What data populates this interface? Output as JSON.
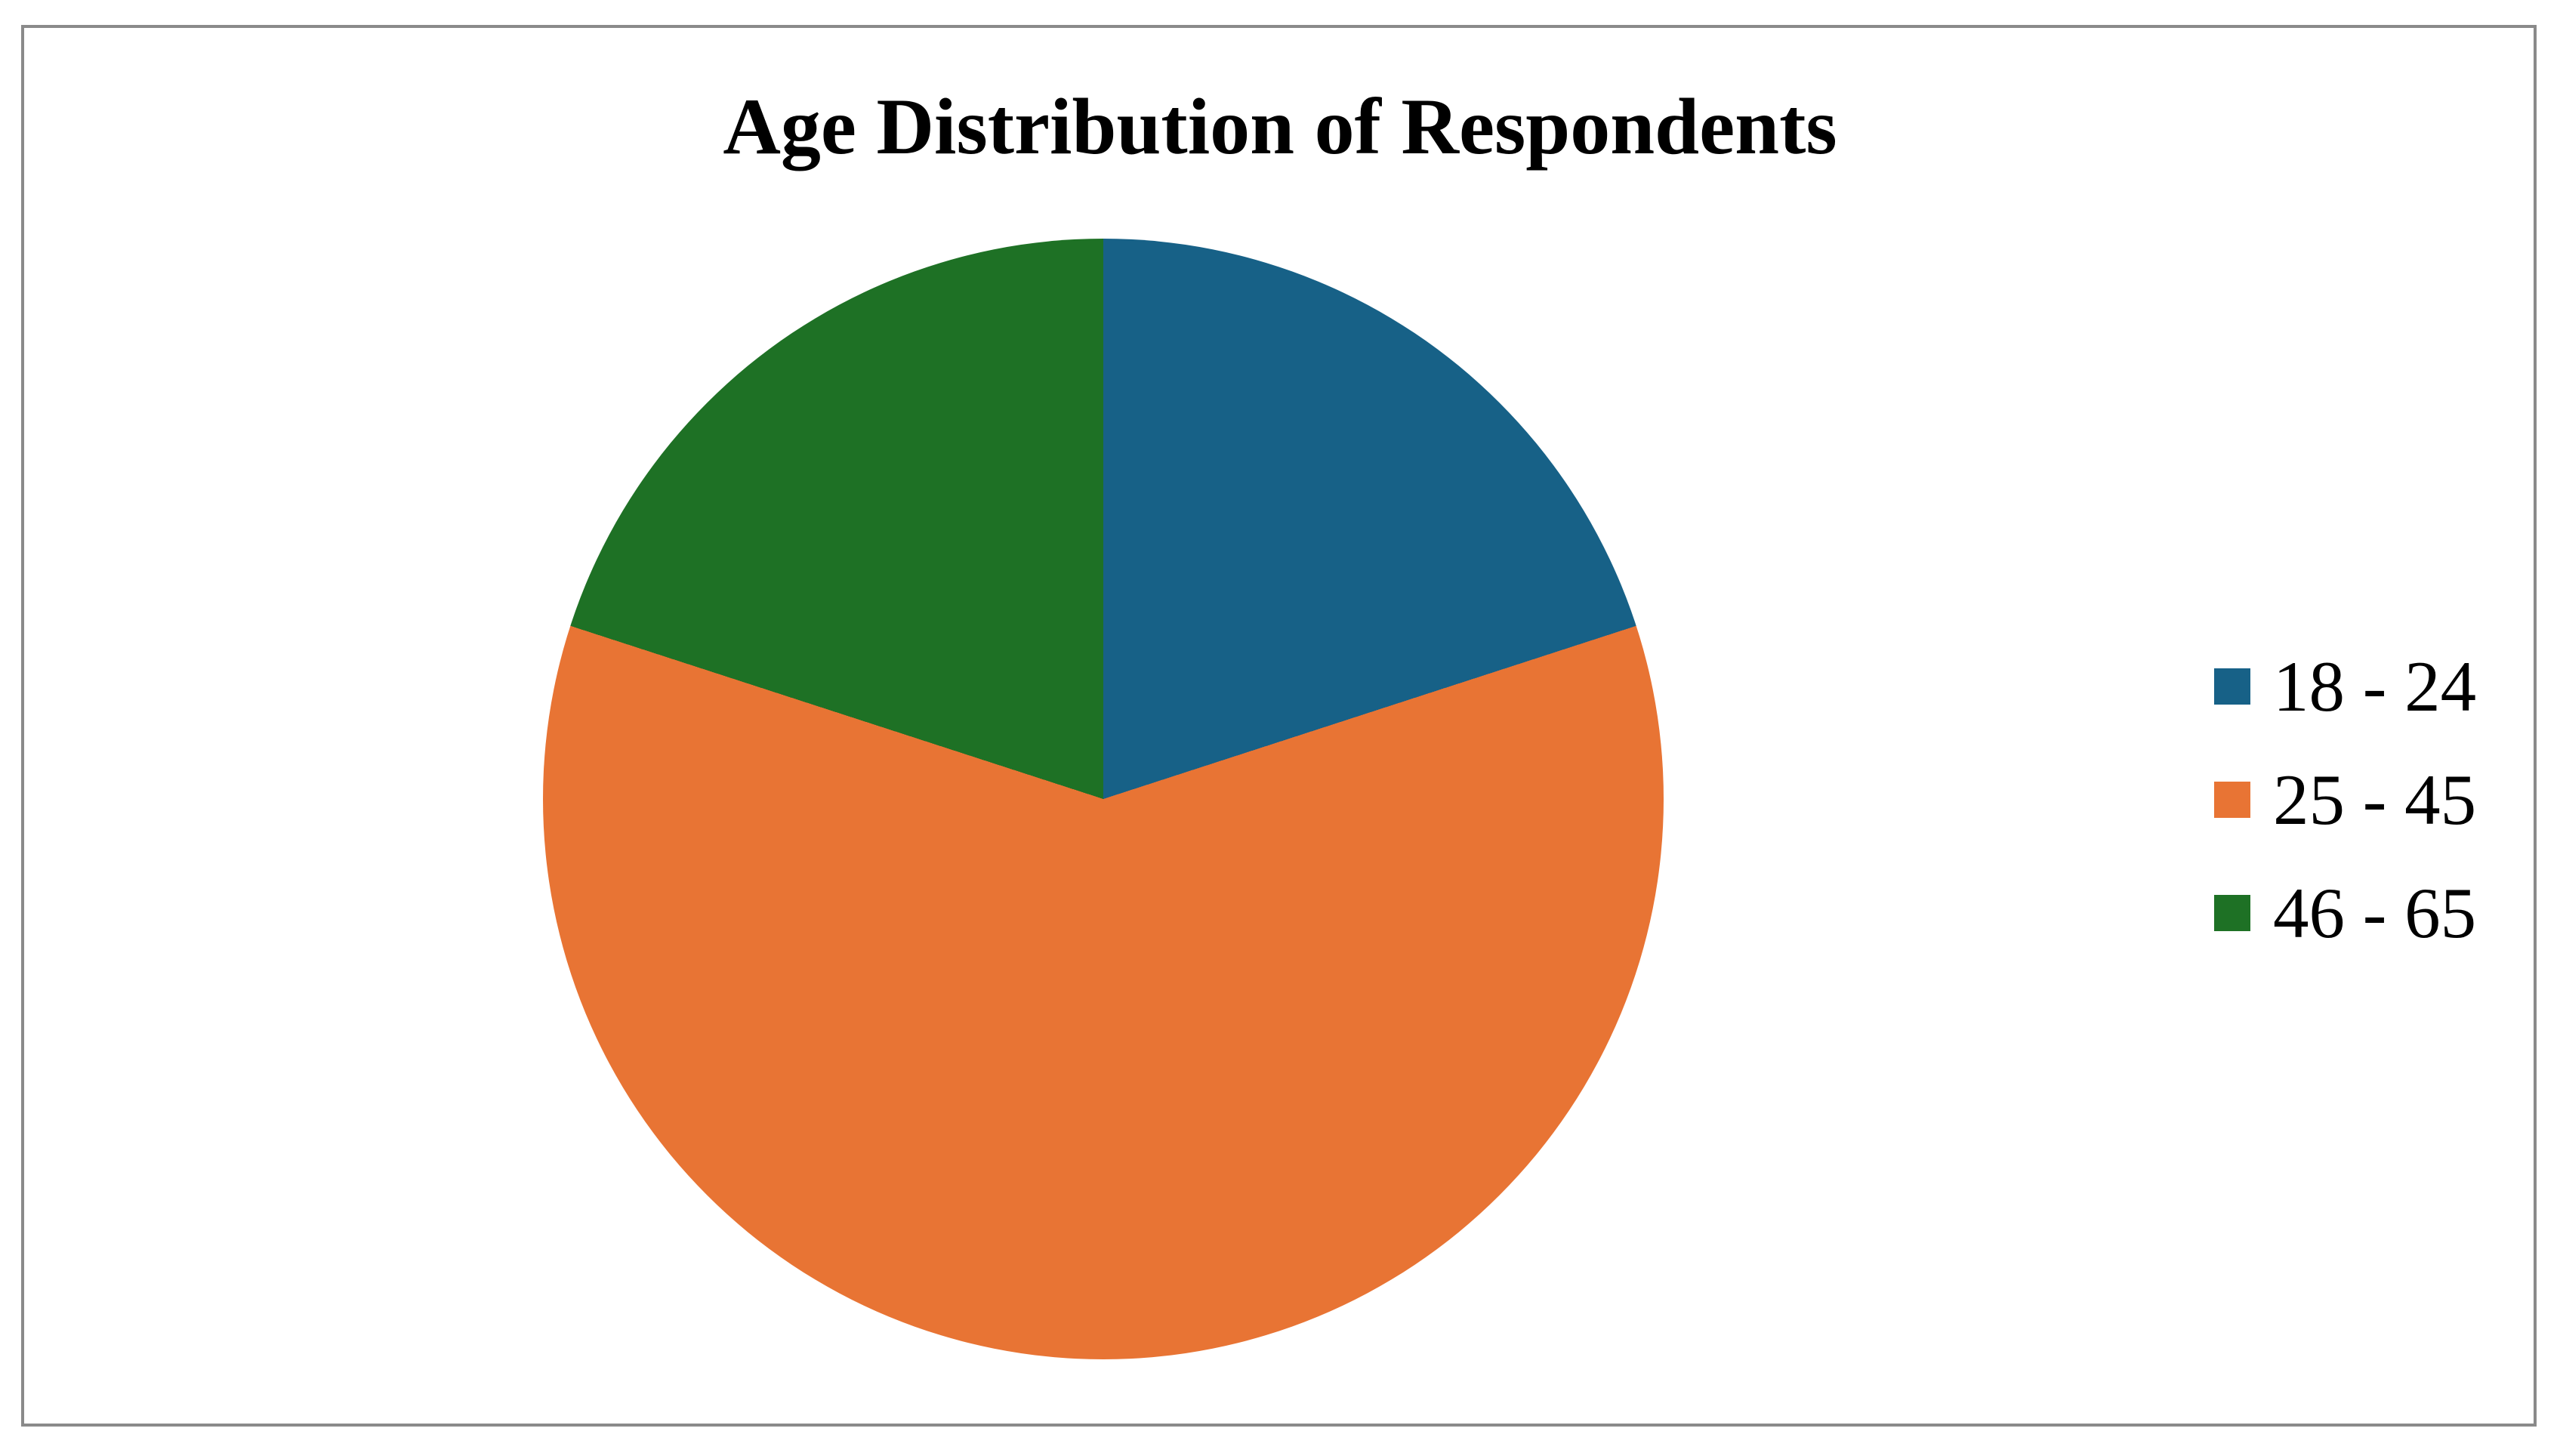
{
  "chart_data": {
    "type": "pie",
    "title": "Age Distribution of Respondents",
    "categories": [
      "18 - 24",
      "25 - 45",
      "46 - 65"
    ],
    "values": [
      20,
      60,
      20
    ],
    "value_format": "percent (estimated from slice angles; no data labels shown)",
    "colors": [
      "#176187",
      "#E87434",
      "#1E7125"
    ],
    "start_angle": "top",
    "direction": "clockwise",
    "legend_position": "right-middle",
    "data_labels": "none",
    "grid": "off"
  },
  "frame": {
    "border_color": "#8A8A8A",
    "background": "#ffffff"
  }
}
